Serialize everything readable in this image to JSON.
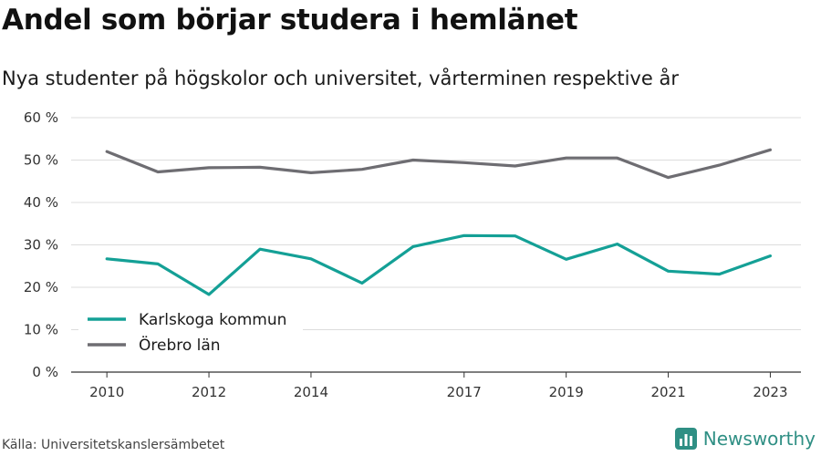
{
  "header": {
    "title": "Andel som börjar studera i hemlänet",
    "subtitle": "Nya studenter på högskolor och universitet, vårterminen respektive år"
  },
  "chart_data": {
    "type": "line",
    "x": [
      2010,
      2011,
      2012,
      2013,
      2014,
      2015,
      2016,
      2017,
      2018,
      2019,
      2020,
      2021,
      2022,
      2023
    ],
    "x_tick_labels": [
      "2010",
      "2012",
      "2014",
      "2017",
      "2019",
      "2021",
      "2023"
    ],
    "x_tick_values": [
      2010,
      2012,
      2014,
      2017,
      2019,
      2021,
      2023
    ],
    "y_tick_values": [
      0,
      10,
      20,
      30,
      40,
      50,
      60
    ],
    "y_tick_labels": [
      "0 %",
      "10 %",
      "20 %",
      "30 %",
      "40 %",
      "50 %",
      "60 %"
    ],
    "ylim": [
      0,
      60
    ],
    "grid": true,
    "legend_position": "bottom-left",
    "series": [
      {
        "name": "Karlskoga kommun",
        "color": "#14a096",
        "values": [
          26.7,
          25.5,
          18.3,
          29.0,
          26.7,
          21.0,
          29.6,
          32.2,
          32.1,
          26.6,
          30.2,
          23.8,
          23.1,
          27.4
        ]
      },
      {
        "name": "Örebro län",
        "color": "#6e6d72",
        "values": [
          52.0,
          47.2,
          48.2,
          48.3,
          47.0,
          47.8,
          50.0,
          49.4,
          48.6,
          50.5,
          50.5,
          45.9,
          48.8,
          52.4
        ]
      }
    ]
  },
  "footer": {
    "source": "Källa: Universitetskanslersämbetet",
    "brand": "Newsworthy",
    "brand_color": "#2f8f84"
  }
}
